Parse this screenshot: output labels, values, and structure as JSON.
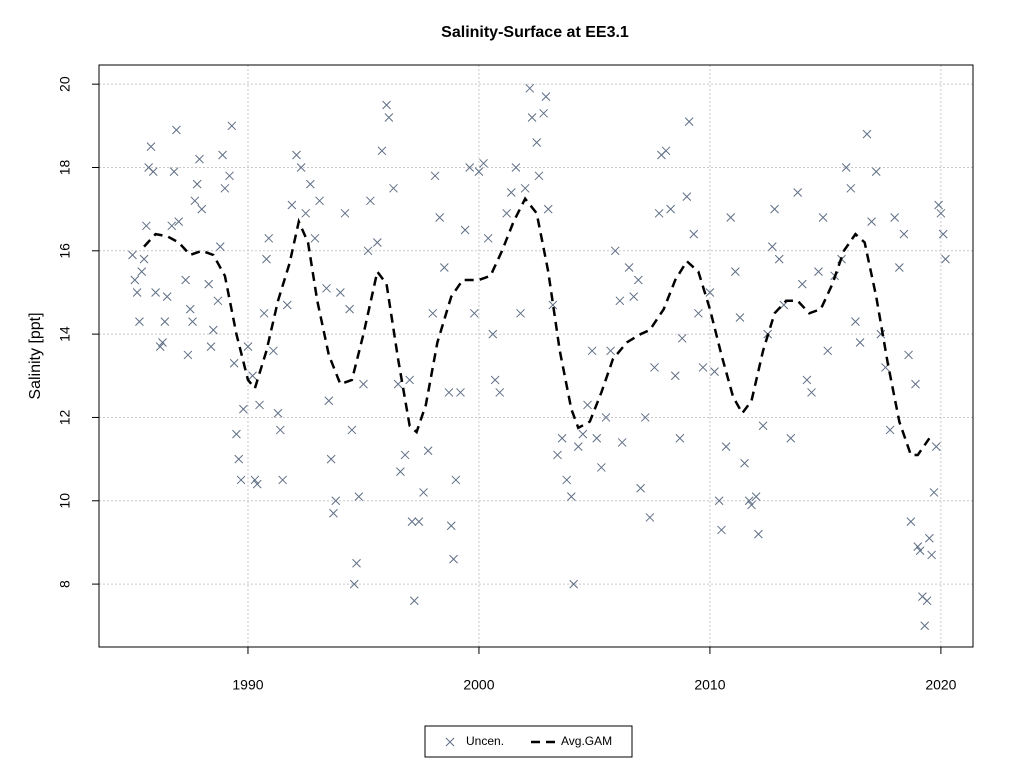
{
  "chart_data": {
    "type": "scatter",
    "title": "Salinity-Surface at EE3.1",
    "y_label": "Salinity [ppt]",
    "xlim": [
      1983.55,
      2021.39
    ],
    "xticks": [
      1990,
      2000,
      2010,
      2020
    ],
    "ylim": [
      6.49,
      20.46
    ],
    "yticks": [
      8,
      10,
      12,
      14,
      16,
      18,
      20
    ],
    "grid": true,
    "legend": "bottom",
    "series": [
      {
        "name": "Uncen.",
        "color": "#5f6f85",
        "marker": "x",
        "x": [
          1985.0,
          1985.1,
          1985.2,
          1985.3,
          1985.4,
          1985.5,
          1985.6,
          1985.7,
          1985.8,
          1985.9,
          1986.0,
          1986.2,
          1986.3,
          1986.4,
          1986.5,
          1986.7,
          1986.8,
          1986.9,
          1987.0,
          1987.3,
          1987.4,
          1987.5,
          1987.6,
          1987.7,
          1987.8,
          1987.9,
          1988.0,
          1988.3,
          1988.4,
          1988.5,
          1988.7,
          1988.8,
          1988.9,
          1989.0,
          1989.2,
          1989.3,
          1989.4,
          1989.5,
          1989.6,
          1989.7,
          1989.8,
          1990.0,
          1990.2,
          1990.3,
          1990.4,
          1990.5,
          1990.7,
          1990.8,
          1990.9,
          1991.1,
          1991.3,
          1991.4,
          1991.5,
          1991.7,
          1991.9,
          1992.1,
          1992.3,
          1992.5,
          1992.7,
          1992.9,
          1993.1,
          1993.4,
          1993.5,
          1993.6,
          1993.7,
          1993.8,
          1994.0,
          1994.2,
          1994.4,
          1994.5,
          1994.6,
          1994.7,
          1994.8,
          1995.0,
          1995.2,
          1995.3,
          1995.6,
          1995.8,
          1996.0,
          1996.1,
          1996.3,
          1996.5,
          1996.6,
          1996.8,
          1997.0,
          1997.1,
          1997.2,
          1997.4,
          1997.6,
          1997.8,
          1998.0,
          1998.1,
          1998.3,
          1998.5,
          1998.7,
          1998.8,
          1998.9,
          1999.0,
          1999.2,
          1999.4,
          1999.6,
          1999.8,
          2000.0,
          2000.2,
          2000.4,
          2000.6,
          2000.7,
          2000.9,
          2001.2,
          2001.4,
          2001.6,
          2001.8,
          2002.0,
          2002.2,
          2002.3,
          2002.5,
          2002.6,
          2002.8,
          2002.9,
          2003.0,
          2003.2,
          2003.4,
          2003.6,
          2003.8,
          2004.0,
          2004.1,
          2004.3,
          2004.5,
          2004.7,
          2004.9,
          2005.1,
          2005.3,
          2005.5,
          2005.7,
          2005.9,
          2006.1,
          2006.2,
          2006.5,
          2006.7,
          2006.9,
          2007.0,
          2007.2,
          2007.4,
          2007.6,
          2007.8,
          2007.9,
          2008.1,
          2008.3,
          2008.5,
          2008.7,
          2008.8,
          2009.0,
          2009.1,
          2009.3,
          2009.5,
          2009.7,
          2010.0,
          2010.2,
          2010.4,
          2010.5,
          2010.7,
          2010.9,
          2011.1,
          2011.3,
          2011.5,
          2011.7,
          2011.8,
          2012.0,
          2012.1,
          2012.3,
          2012.5,
          2012.7,
          2012.8,
          2013.0,
          2013.2,
          2013.5,
          2013.8,
          2014.0,
          2014.2,
          2014.4,
          2014.7,
          2014.9,
          2015.1,
          2015.4,
          2015.7,
          2015.9,
          2016.1,
          2016.3,
          2016.5,
          2016.8,
          2017.0,
          2017.2,
          2017.4,
          2017.6,
          2017.8,
          2018.0,
          2018.2,
          2018.4,
          2018.6,
          2018.7,
          2018.9,
          2019.0,
          2019.1,
          2019.2,
          2019.3,
          2019.4,
          2019.5,
          2019.6,
          2019.7,
          2019.8,
          2019.9,
          2020.0,
          2020.1,
          2020.2
        ],
        "values": [
          15.9,
          15.3,
          15.0,
          14.3,
          15.5,
          15.8,
          16.6,
          18.0,
          18.5,
          17.9,
          15.0,
          13.7,
          13.8,
          14.3,
          14.9,
          16.6,
          17.9,
          18.9,
          16.7,
          15.3,
          13.5,
          14.6,
          14.3,
          17.2,
          17.6,
          18.2,
          17.0,
          15.2,
          13.7,
          14.1,
          14.8,
          16.1,
          18.3,
          17.5,
          17.8,
          19.0,
          13.3,
          11.6,
          11.0,
          10.5,
          12.2,
          13.7,
          13.0,
          10.5,
          10.4,
          12.3,
          14.5,
          15.8,
          16.3,
          13.6,
          12.1,
          11.7,
          10.5,
          14.7,
          17.1,
          18.3,
          18.0,
          16.9,
          17.6,
          16.3,
          17.2,
          15.1,
          12.4,
          11.0,
          9.7,
          10.0,
          15.0,
          16.9,
          14.6,
          11.7,
          8.0,
          8.5,
          10.1,
          12.8,
          16.0,
          17.2,
          16.2,
          18.4,
          19.5,
          19.2,
          17.5,
          12.8,
          10.7,
          11.1,
          12.9,
          9.5,
          7.6,
          9.5,
          10.2,
          11.2,
          14.5,
          17.8,
          16.8,
          15.6,
          12.6,
          9.4,
          8.6,
          10.5,
          12.6,
          16.5,
          18.0,
          14.5,
          17.9,
          18.1,
          16.3,
          14.0,
          12.9,
          12.6,
          16.9,
          17.4,
          18.0,
          14.5,
          17.5,
          19.9,
          19.2,
          18.6,
          17.8,
          19.3,
          19.7,
          17.0,
          14.7,
          11.1,
          11.5,
          10.5,
          10.1,
          8.0,
          11.3,
          11.6,
          12.3,
          13.6,
          11.5,
          10.8,
          12.0,
          13.6,
          16.0,
          14.8,
          11.4,
          15.6,
          14.9,
          15.3,
          10.3,
          12.0,
          9.6,
          13.2,
          16.9,
          18.3,
          18.4,
          17.0,
          13.0,
          11.5,
          13.9,
          17.3,
          19.1,
          16.4,
          14.5,
          13.2,
          15.0,
          13.1,
          10.0,
          9.3,
          11.3,
          16.8,
          15.5,
          14.4,
          10.9,
          10.0,
          9.9,
          10.1,
          9.2,
          11.8,
          14.0,
          16.1,
          17.0,
          15.8,
          14.7,
          11.5,
          17.4,
          15.2,
          12.9,
          12.6,
          15.5,
          16.8,
          13.6,
          15.4,
          15.8,
          18.0,
          17.5,
          14.3,
          13.8,
          18.8,
          16.7,
          17.9,
          14.0,
          13.2,
          11.7,
          16.8,
          15.6,
          16.4,
          13.5,
          9.5,
          12.8,
          8.9,
          8.8,
          7.7,
          7.0,
          7.6,
          9.1,
          8.7,
          10.2,
          11.3,
          17.1,
          16.9,
          16.4,
          15.8
        ]
      },
      {
        "name": "Avg.GAM",
        "color": "#000000",
        "line_style": "dashed",
        "x": [
          1985.5,
          1986,
          1986.5,
          1987,
          1987.5,
          1988,
          1988.5,
          1989,
          1989.5,
          1990,
          1990.3,
          1990.8,
          1991.3,
          1991.8,
          1992.2,
          1992.6,
          1993,
          1993.5,
          1994,
          1994.5,
          1995,
          1995.6,
          1996,
          1996.5,
          1997,
          1997.3,
          1997.7,
          1998.2,
          1998.8,
          1999.3,
          2000,
          2000.5,
          2001,
          2001.5,
          2002,
          2002.5,
          2003,
          2003.5,
          2004,
          2004.3,
          2004.8,
          2005.3,
          2005.8,
          2006.4,
          2007,
          2007.4,
          2008,
          2008.5,
          2009,
          2009.5,
          2010,
          2010.5,
          2011,
          2011.4,
          2011.8,
          2012.3,
          2012.8,
          2013.3,
          2013.8,
          2014.3,
          2014.8,
          2015.3,
          2015.8,
          2016.3,
          2016.7,
          2017.2,
          2017.7,
          2018.2,
          2018.7,
          2019,
          2019.5
        ],
        "values": [
          16.1,
          16.4,
          16.35,
          16.2,
          15.9,
          16.0,
          15.9,
          15.4,
          14.0,
          12.9,
          12.7,
          13.6,
          14.8,
          15.7,
          16.7,
          16.2,
          14.8,
          13.5,
          12.8,
          12.9,
          14.0,
          15.5,
          15.2,
          13.4,
          11.8,
          11.65,
          12.3,
          13.8,
          14.9,
          15.3,
          15.3,
          15.4,
          16.0,
          16.7,
          17.25,
          16.9,
          15.5,
          13.6,
          12.2,
          11.75,
          11.9,
          12.6,
          13.4,
          13.8,
          14.0,
          14.1,
          14.6,
          15.3,
          15.75,
          15.5,
          14.6,
          13.5,
          12.5,
          12.1,
          12.4,
          13.6,
          14.5,
          14.8,
          14.8,
          14.5,
          14.6,
          15.2,
          16.0,
          16.4,
          16.2,
          14.9,
          13.3,
          11.9,
          11.1,
          11.1,
          11.5
        ]
      }
    ]
  }
}
